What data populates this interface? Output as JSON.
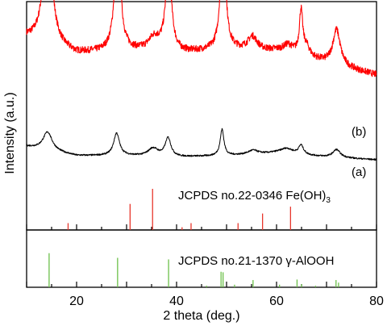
{
  "chart_data": {
    "type": "line",
    "xlabel": "2 theta (deg.)",
    "ylabel": "Intensity (a.u.)",
    "xlim": [
      10,
      80
    ],
    "x_ticks": [
      "20",
      "40",
      "60",
      "80"
    ],
    "grid": false,
    "series": [
      {
        "name": "(b)",
        "color": "#ff0000",
        "baseline": 0.7,
        "background": [
          [
            10,
            0.22
          ],
          [
            20,
            0.1
          ],
          [
            30,
            0.12
          ],
          [
            40,
            0.1
          ],
          [
            50,
            0.13
          ],
          [
            60,
            0.12
          ],
          [
            65,
            0.08
          ],
          [
            70,
            0.03
          ],
          [
            80,
            -0.06
          ]
        ],
        "peaks": [
          {
            "x": 14.2,
            "h": 0.96,
            "w": 0.95
          },
          {
            "x": 28.2,
            "h": 0.93,
            "w": 0.65
          },
          {
            "x": 35.5,
            "h": 0.1,
            "w": 1.4
          },
          {
            "x": 38.4,
            "h": 0.65,
            "w": 0.7
          },
          {
            "x": 49.3,
            "h": 0.98,
            "w": 0.55
          },
          {
            "x": 55.2,
            "h": 0.1,
            "w": 1.1
          },
          {
            "x": 62.3,
            "h": 0.06,
            "w": 1.2
          },
          {
            "x": 64.9,
            "h": 0.33,
            "w": 0.4
          },
          {
            "x": 66.0,
            "h": 0.07,
            "w": 0.8
          },
          {
            "x": 72.0,
            "h": 0.27,
            "w": 0.9
          }
        ],
        "noise": 0.025
      },
      {
        "name": "(a)",
        "color": "#000000",
        "baseline": 0.0,
        "background": [
          [
            10,
            0.1
          ],
          [
            20,
            0.03
          ],
          [
            30,
            0.03
          ],
          [
            40,
            0.02
          ],
          [
            50,
            0.03
          ],
          [
            60,
            0.05
          ],
          [
            70,
            0.02
          ],
          [
            80,
            0.0
          ]
        ],
        "peaks": [
          {
            "x": 14.2,
            "h": 0.14,
            "w": 1.1
          },
          {
            "x": 28.0,
            "h": 0.17,
            "w": 0.7
          },
          {
            "x": 35.3,
            "h": 0.06,
            "w": 1.2
          },
          {
            "x": 38.3,
            "h": 0.14,
            "w": 0.7
          },
          {
            "x": 49.1,
            "h": 0.2,
            "w": 0.45
          },
          {
            "x": 55.3,
            "h": 0.03,
            "w": 1.2
          },
          {
            "x": 62.0,
            "h": 0.04,
            "w": 1.5
          },
          {
            "x": 64.9,
            "h": 0.07,
            "w": 0.6
          },
          {
            "x": 72.0,
            "h": 0.06,
            "w": 0.9
          }
        ],
        "noise": 0.006
      }
    ],
    "references": [
      {
        "name": "JCPDS no.22-0346 Fe(OH)",
        "name_subscript": "3",
        "color": "#e8372d",
        "lines": [
          {
            "x": 18.3,
            "h": 0.05
          },
          {
            "x": 30.7,
            "h": 0.19
          },
          {
            "x": 35.2,
            "h": 0.3
          },
          {
            "x": 41.1,
            "h": 0.02
          },
          {
            "x": 42.9,
            "h": 0.05
          },
          {
            "x": 52.3,
            "h": 0.05
          },
          {
            "x": 57.2,
            "h": 0.12
          },
          {
            "x": 62.8,
            "h": 0.17
          }
        ]
      },
      {
        "name": "JCPDS no.21-1370 γ-AlOOH",
        "color": "#6cc04a",
        "lines": [
          {
            "x": 14.5,
            "h": 0.66
          },
          {
            "x": 28.2,
            "h": 0.57
          },
          {
            "x": 38.4,
            "h": 0.54
          },
          {
            "x": 46.0,
            "h": 0.03
          },
          {
            "x": 48.9,
            "h": 0.3
          },
          {
            "x": 49.3,
            "h": 0.29
          },
          {
            "x": 51.6,
            "h": 0.05
          },
          {
            "x": 55.3,
            "h": 0.14
          },
          {
            "x": 60.6,
            "h": 0.05
          },
          {
            "x": 64.1,
            "h": 0.15
          },
          {
            "x": 65.0,
            "h": 0.06
          },
          {
            "x": 67.8,
            "h": 0.03
          },
          {
            "x": 71.9,
            "h": 0.14
          },
          {
            "x": 72.4,
            "h": 0.09
          }
        ]
      }
    ]
  }
}
